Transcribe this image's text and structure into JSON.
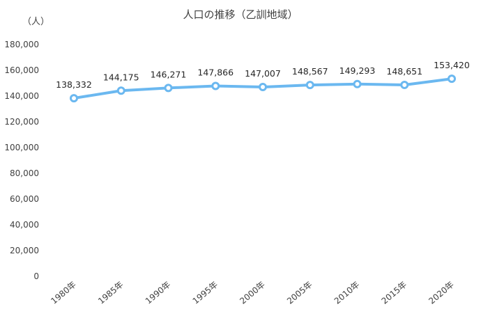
{
  "chart_data": {
    "type": "line",
    "title": "人口の推移（乙訓地域）",
    "ylabel": "（人）",
    "xlabel": "",
    "categories": [
      "1980年",
      "1985年",
      "1990年",
      "1995年",
      "2000年",
      "2005年",
      "2010年",
      "2015年",
      "2020年"
    ],
    "values": [
      138332,
      144175,
      146271,
      147866,
      147007,
      148567,
      149293,
      148651,
      153420
    ],
    "data_labels": [
      "138,332",
      "144,175",
      "146,271",
      "147,866",
      "147,007",
      "148,567",
      "149,293",
      "148,651",
      "153,420"
    ],
    "ylim": [
      0,
      180000
    ],
    "yticks": [
      "0",
      "20,000",
      "40,000",
      "60,000",
      "80,000",
      "100,000",
      "120,000",
      "140,000",
      "160,000",
      "180,000"
    ],
    "grid": false,
    "legend": "none",
    "marker": "hollow-circle",
    "series_color": "#6BB8F0"
  }
}
